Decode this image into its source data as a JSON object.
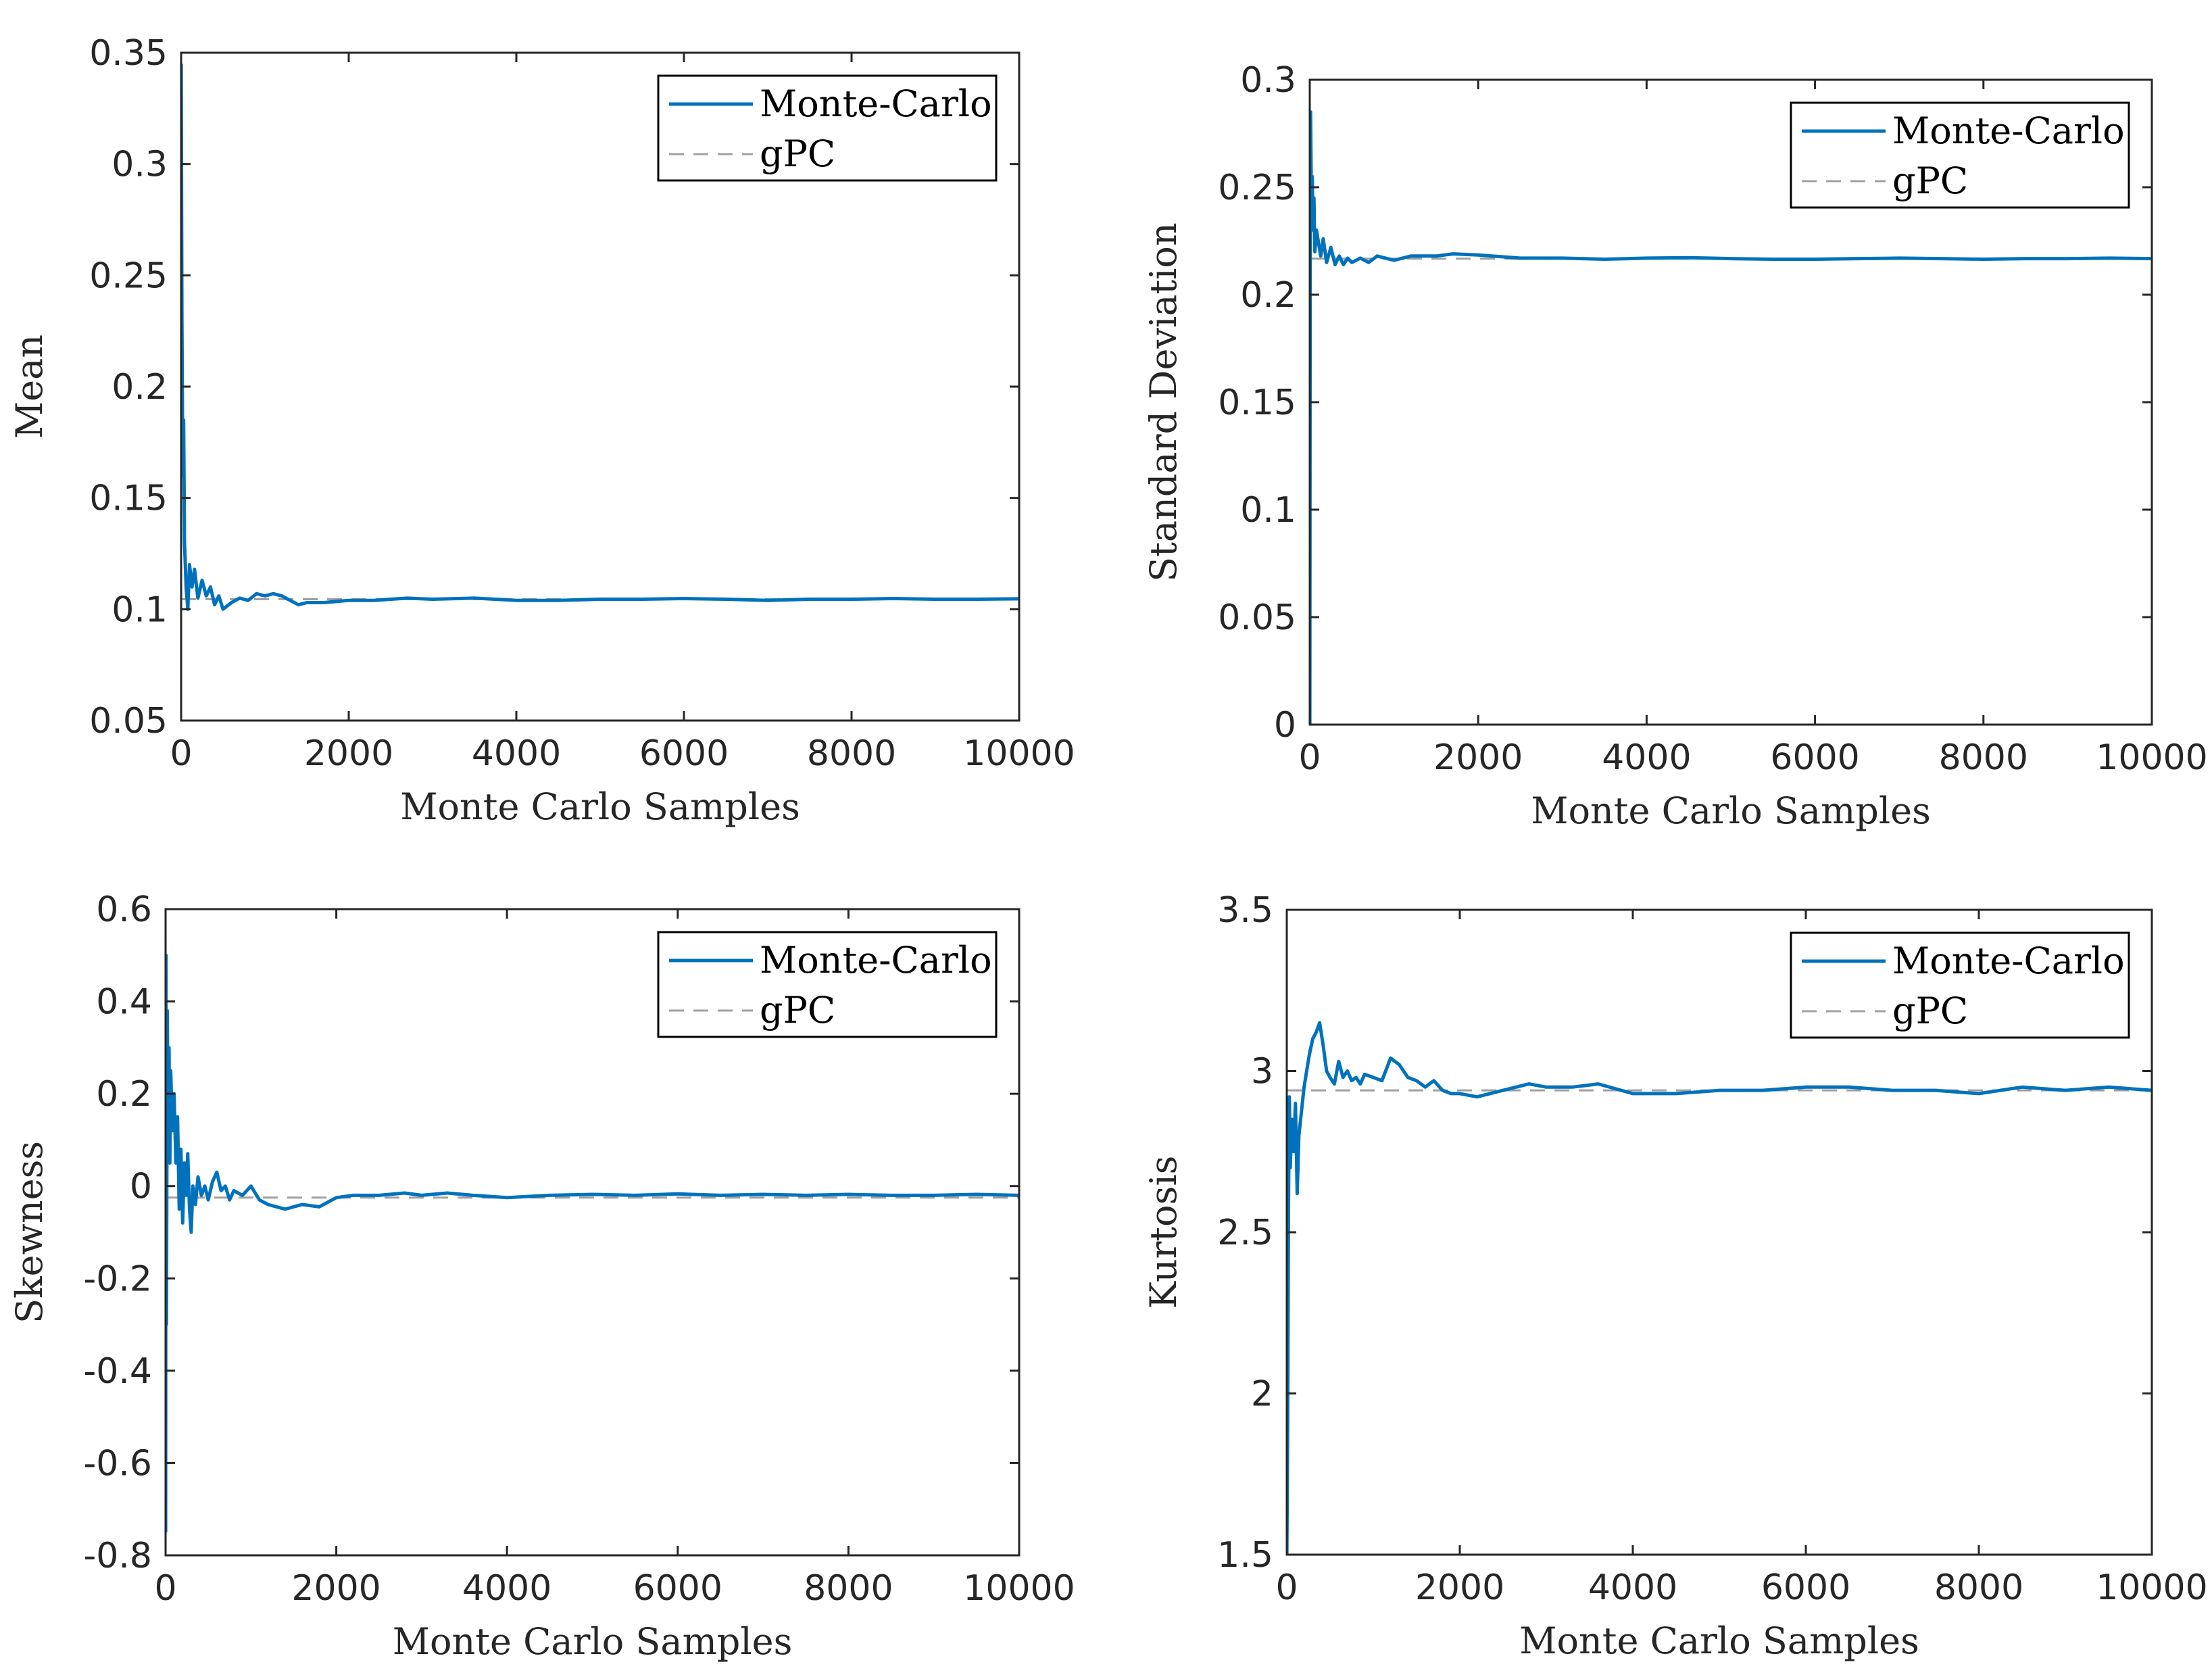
{
  "colors": {
    "mc": "#0072bd",
    "gpc": "#a0a0a0",
    "axis": "#262626"
  },
  "chart_data": [
    {
      "type": "line",
      "id": "mean",
      "ylabel": "Mean",
      "xlabel": "Monte Carlo Samples",
      "xlim": [
        0,
        10000
      ],
      "ylim": [
        0.05,
        0.35
      ],
      "xticks": [
        0,
        2000,
        4000,
        6000,
        8000,
        10000
      ],
      "xtick_labels": [
        "0",
        "2000",
        "4000",
        "6000",
        "8000",
        "10000"
      ],
      "yticks": [
        0.05,
        0.1,
        0.15,
        0.2,
        0.25,
        0.3,
        0.35
      ],
      "ytick_labels": [
        "0.05",
        "0.1",
        "0.15",
        "0.2",
        "0.25",
        "0.3",
        "0.35"
      ],
      "legend": [
        "Monte-Carlo",
        "gPC"
      ],
      "legend_location": "top-right",
      "series": [
        {
          "name": "Monte-Carlo",
          "style": "solid",
          "x": [
            1,
            10,
            20,
            30,
            40,
            60,
            80,
            100,
            130,
            160,
            200,
            250,
            300,
            350,
            400,
            450,
            500,
            600,
            700,
            800,
            900,
            1000,
            1100,
            1200,
            1300,
            1400,
            1500,
            1700,
            2000,
            2300,
            2700,
            3000,
            3500,
            4000,
            4500,
            5000,
            5500,
            6000,
            6500,
            7000,
            7500,
            8000,
            8500,
            9000,
            9500,
            10000
          ],
          "y": [
            0.345,
            0.23,
            0.16,
            0.185,
            0.13,
            0.11,
            0.1,
            0.12,
            0.11,
            0.118,
            0.105,
            0.113,
            0.106,
            0.11,
            0.102,
            0.106,
            0.1,
            0.103,
            0.105,
            0.104,
            0.107,
            0.106,
            0.107,
            0.106,
            0.104,
            0.102,
            0.103,
            0.103,
            0.104,
            0.104,
            0.105,
            0.1045,
            0.105,
            0.104,
            0.104,
            0.1045,
            0.1045,
            0.1048,
            0.1045,
            0.104,
            0.1045,
            0.1045,
            0.1048,
            0.1045,
            0.1045,
            0.1047
          ]
        },
        {
          "name": "gPC",
          "style": "dashed",
          "x": [
            0,
            10000
          ],
          "y": [
            0.1045,
            0.1045
          ]
        }
      ]
    },
    {
      "type": "line",
      "id": "std",
      "ylabel": "Standard Deviation",
      "xlabel": "Monte Carlo Samples",
      "xlim": [
        0,
        10000
      ],
      "ylim": [
        0,
        0.3
      ],
      "xticks": [
        0,
        2000,
        4000,
        6000,
        8000,
        10000
      ],
      "xtick_labels": [
        "0",
        "2000",
        "4000",
        "6000",
        "8000",
        "10000"
      ],
      "yticks": [
        0,
        0.05,
        0.1,
        0.15,
        0.2,
        0.25,
        0.3
      ],
      "ytick_labels": [
        "0",
        "0.05",
        "0.1",
        "0.15",
        "0.2",
        "0.25",
        "0.3"
      ],
      "legend": [
        "Monte-Carlo",
        "gPC"
      ],
      "legend_location": "top-right",
      "series": [
        {
          "name": "Monte-Carlo",
          "style": "solid",
          "x": [
            1,
            5,
            10,
            20,
            30,
            40,
            50,
            60,
            80,
            100,
            130,
            160,
            200,
            250,
            300,
            350,
            400,
            450,
            500,
            600,
            700,
            800,
            900,
            1000,
            1200,
            1500,
            1700,
            2000,
            2500,
            3000,
            3500,
            4000,
            4500,
            5000,
            5500,
            6000,
            6500,
            7000,
            7500,
            8000,
            8500,
            9000,
            9500,
            10000
          ],
          "y": [
            0,
            0.21,
            0.285,
            0.24,
            0.255,
            0.23,
            0.245,
            0.22,
            0.23,
            0.225,
            0.218,
            0.226,
            0.215,
            0.222,
            0.214,
            0.218,
            0.214,
            0.217,
            0.215,
            0.217,
            0.215,
            0.218,
            0.217,
            0.216,
            0.218,
            0.218,
            0.219,
            0.2185,
            0.217,
            0.217,
            0.2165,
            0.217,
            0.2172,
            0.2168,
            0.2165,
            0.2165,
            0.2168,
            0.217,
            0.2168,
            0.2165,
            0.2168,
            0.2168,
            0.217,
            0.2168
          ]
        },
        {
          "name": "gPC",
          "style": "dashed",
          "x": [
            0,
            10000
          ],
          "y": [
            0.2168,
            0.2168
          ]
        }
      ]
    },
    {
      "type": "line",
      "id": "skew",
      "ylabel": "Skewness",
      "xlabel": "Monte Carlo Samples",
      "xlim": [
        0,
        10000
      ],
      "ylim": [
        -0.8,
        0.6
      ],
      "xticks": [
        0,
        2000,
        4000,
        6000,
        8000,
        10000
      ],
      "xtick_labels": [
        "0",
        "2000",
        "4000",
        "6000",
        "8000",
        "10000"
      ],
      "yticks": [
        -0.8,
        -0.6,
        -0.4,
        -0.2,
        0,
        0.2,
        0.4,
        0.6
      ],
      "ytick_labels": [
        "-0.8",
        "-0.6",
        "-0.4",
        "-0.2",
        "0",
        "0.2",
        "0.4",
        "0.6"
      ],
      "legend": [
        "Monte-Carlo",
        "gPC"
      ],
      "legend_location": "top-right",
      "series": [
        {
          "name": "Monte-Carlo",
          "style": "solid",
          "x": [
            1,
            5,
            10,
            20,
            30,
            40,
            50,
            60,
            80,
            100,
            120,
            140,
            160,
            180,
            200,
            220,
            240,
            260,
            280,
            300,
            320,
            350,
            380,
            420,
            460,
            500,
            550,
            600,
            650,
            700,
            750,
            800,
            900,
            1000,
            1100,
            1200,
            1400,
            1600,
            1800,
            2000,
            2200,
            2500,
            2800,
            3000,
            3300,
            3600,
            4000,
            4500,
            5000,
            5500,
            6000,
            6500,
            7000,
            7500,
            8000,
            8500,
            9000,
            9500,
            10000
          ],
          "y": [
            -0.75,
            0.5,
            -0.3,
            0.38,
            0.1,
            0.3,
            0.05,
            0.25,
            0.12,
            0.2,
            0.05,
            0.15,
            -0.05,
            0.08,
            -0.08,
            0.05,
            -0.02,
            0.07,
            -0.05,
            -0.1,
            0.0,
            -0.04,
            0.02,
            -0.02,
            0.0,
            -0.03,
            0.01,
            0.03,
            -0.01,
            0.0,
            -0.03,
            -0.01,
            -0.02,
            0.0,
            -0.03,
            -0.04,
            -0.05,
            -0.04,
            -0.045,
            -0.025,
            -0.02,
            -0.02,
            -0.015,
            -0.02,
            -0.015,
            -0.02,
            -0.025,
            -0.02,
            -0.018,
            -0.02,
            -0.017,
            -0.02,
            -0.018,
            -0.02,
            -0.018,
            -0.02,
            -0.02,
            -0.018,
            -0.02
          ]
        },
        {
          "name": "gPC",
          "style": "dashed",
          "x": [
            0,
            10000
          ],
          "y": [
            -0.025,
            -0.025
          ]
        }
      ]
    },
    {
      "type": "line",
      "id": "kurt",
      "ylabel": "Kurtosis",
      "xlabel": "Monte Carlo Samples",
      "xlim": [
        0,
        10000
      ],
      "ylim": [
        1.5,
        3.5
      ],
      "xticks": [
        0,
        2000,
        4000,
        6000,
        8000,
        10000
      ],
      "xtick_labels": [
        "0",
        "2000",
        "4000",
        "6000",
        "8000",
        "10000"
      ],
      "yticks": [
        1.5,
        2,
        2.5,
        3,
        3.5
      ],
      "ytick_labels": [
        "1.5",
        "2",
        "2.5",
        "3",
        "3.5"
      ],
      "legend": [
        "Monte-Carlo",
        "gPC"
      ],
      "legend_location": "top-right",
      "series": [
        {
          "name": "Monte-Carlo",
          "style": "solid",
          "x": [
            1,
            10,
            20,
            30,
            40,
            60,
            80,
            100,
            120,
            140,
            160,
            180,
            200,
            230,
            260,
            300,
            340,
            380,
            420,
            460,
            500,
            550,
            600,
            650,
            700,
            750,
            800,
            850,
            900,
            1000,
            1100,
            1200,
            1250,
            1300,
            1400,
            1500,
            1600,
            1700,
            1800,
            1900,
            2000,
            2200,
            2500,
            2800,
            3000,
            3300,
            3600,
            4000,
            4500,
            5000,
            5500,
            6000,
            6500,
            7000,
            7500,
            8000,
            8500,
            9000,
            9500,
            10000
          ],
          "y": [
            1.5,
            1.9,
            2.6,
            2.92,
            2.7,
            2.85,
            2.75,
            2.9,
            2.62,
            2.8,
            2.85,
            2.9,
            2.95,
            3.0,
            3.05,
            3.1,
            3.12,
            3.15,
            3.08,
            3.0,
            2.98,
            2.96,
            3.03,
            2.98,
            3.0,
            2.97,
            2.98,
            2.96,
            2.99,
            2.98,
            2.97,
            3.04,
            3.03,
            3.02,
            2.98,
            2.97,
            2.95,
            2.97,
            2.94,
            2.93,
            2.93,
            2.92,
            2.94,
            2.96,
            2.95,
            2.95,
            2.96,
            2.93,
            2.93,
            2.94,
            2.94,
            2.95,
            2.95,
            2.94,
            2.94,
            2.93,
            2.95,
            2.94,
            2.95,
            2.94
          ]
        },
        {
          "name": "gPC",
          "style": "dashed",
          "x": [
            0,
            10000
          ],
          "y": [
            2.94,
            2.94
          ]
        }
      ]
    }
  ]
}
